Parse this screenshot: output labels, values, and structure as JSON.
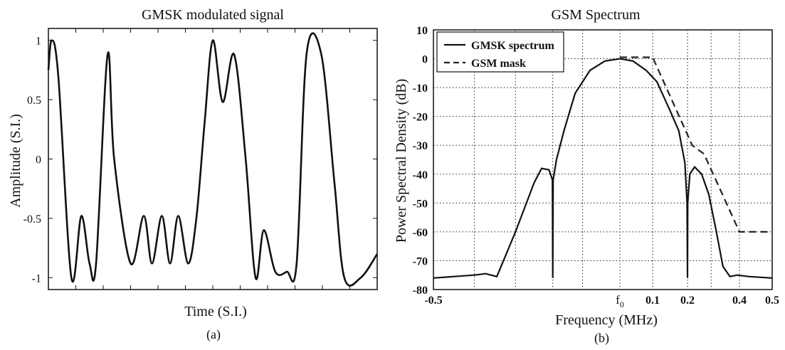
{
  "chart_data": [
    {
      "type": "line",
      "title": "GMSK modulated signal",
      "xlabel": "Time (S.I.)",
      "ylabel": "Amplitude (S.I.)",
      "ylim": [
        -1.1,
        1.1
      ],
      "y_ticks": [
        "1",
        "0.5",
        "0",
        "-0.5",
        "-1"
      ],
      "grid": false,
      "caption": "(a)",
      "series": [
        {
          "values_note": "waveform sampled",
          "x": [
            0,
            0.01,
            0.03,
            0.07,
            0.1,
            0.125,
            0.145,
            0.18,
            0.2,
            0.25,
            0.29,
            0.315,
            0.345,
            0.37,
            0.395,
            0.425,
            0.45,
            0.475,
            0.5,
            0.53,
            0.565,
            0.6,
            0.63,
            0.655,
            0.69,
            0.725,
            0.755,
            0.785,
            0.83,
            0.87,
            0.9,
            0.95,
            1.0
          ],
          "y": [
            0.75,
            1.0,
            0.7,
            -1.0,
            -0.48,
            -0.88,
            -0.88,
            0.88,
            0.0,
            -0.88,
            -0.48,
            -0.88,
            -0.48,
            -0.88,
            -0.48,
            -0.88,
            -0.5,
            0.3,
            1.0,
            0.48,
            0.88,
            0.0,
            -1.0,
            -0.6,
            -0.95,
            -0.95,
            -0.88,
            0.88,
            0.88,
            -0.2,
            -1.0,
            -1.0,
            -0.8
          ]
        }
      ]
    },
    {
      "type": "line",
      "title": "GSM Spectrum",
      "xlabel": "Frequency (MHz)",
      "ylabel": "Power Spectral Density (dB)",
      "ylim": [
        -80,
        10
      ],
      "y_ticks": [
        "10",
        "0",
        "-10",
        "-20",
        "-30",
        "-40",
        "-50",
        "-60",
        "-70",
        "-80"
      ],
      "x_ticks": [
        "-0.5",
        "f0",
        "0.1",
        "0.2",
        "0.4",
        "0.5"
      ],
      "grid": true,
      "legend_position": "top-left",
      "caption": "(b)",
      "series": [
        {
          "name": "GMSK spectrum",
          "style": "solid",
          "x": [
            -0.5,
            -0.39,
            -0.36,
            -0.33,
            -0.28,
            -0.23,
            -0.21,
            -0.19,
            -0.181,
            -0.18,
            -0.179,
            -0.17,
            -0.15,
            -0.12,
            -0.08,
            -0.04,
            0.0,
            0.04,
            0.08,
            0.11,
            0.14,
            0.16,
            0.174,
            0.179,
            0.18,
            0.181,
            0.19,
            0.21,
            0.24,
            0.27,
            0.3,
            0.33,
            0.36,
            0.39,
            0.43,
            0.5
          ],
          "y": [
            -76,
            -75,
            -74.5,
            -75.5,
            -60,
            -43,
            -38,
            -38.5,
            -42,
            -76,
            -42,
            -35,
            -25,
            -12,
            -4,
            -0.8,
            0,
            -0.8,
            -4,
            -8,
            -18,
            -25,
            -36,
            -50,
            -76,
            -50,
            -40,
            -37.5,
            -40,
            -47,
            -59,
            -72,
            -75.5,
            -75,
            -75.5,
            -76
          ]
        },
        {
          "name": "GSM mask",
          "style": "dashed",
          "x": [
            0.0,
            0.1,
            0.2,
            0.25,
            0.4,
            0.5
          ],
          "y": [
            0.5,
            0.5,
            -30,
            -33,
            -60,
            -60
          ]
        }
      ]
    }
  ]
}
